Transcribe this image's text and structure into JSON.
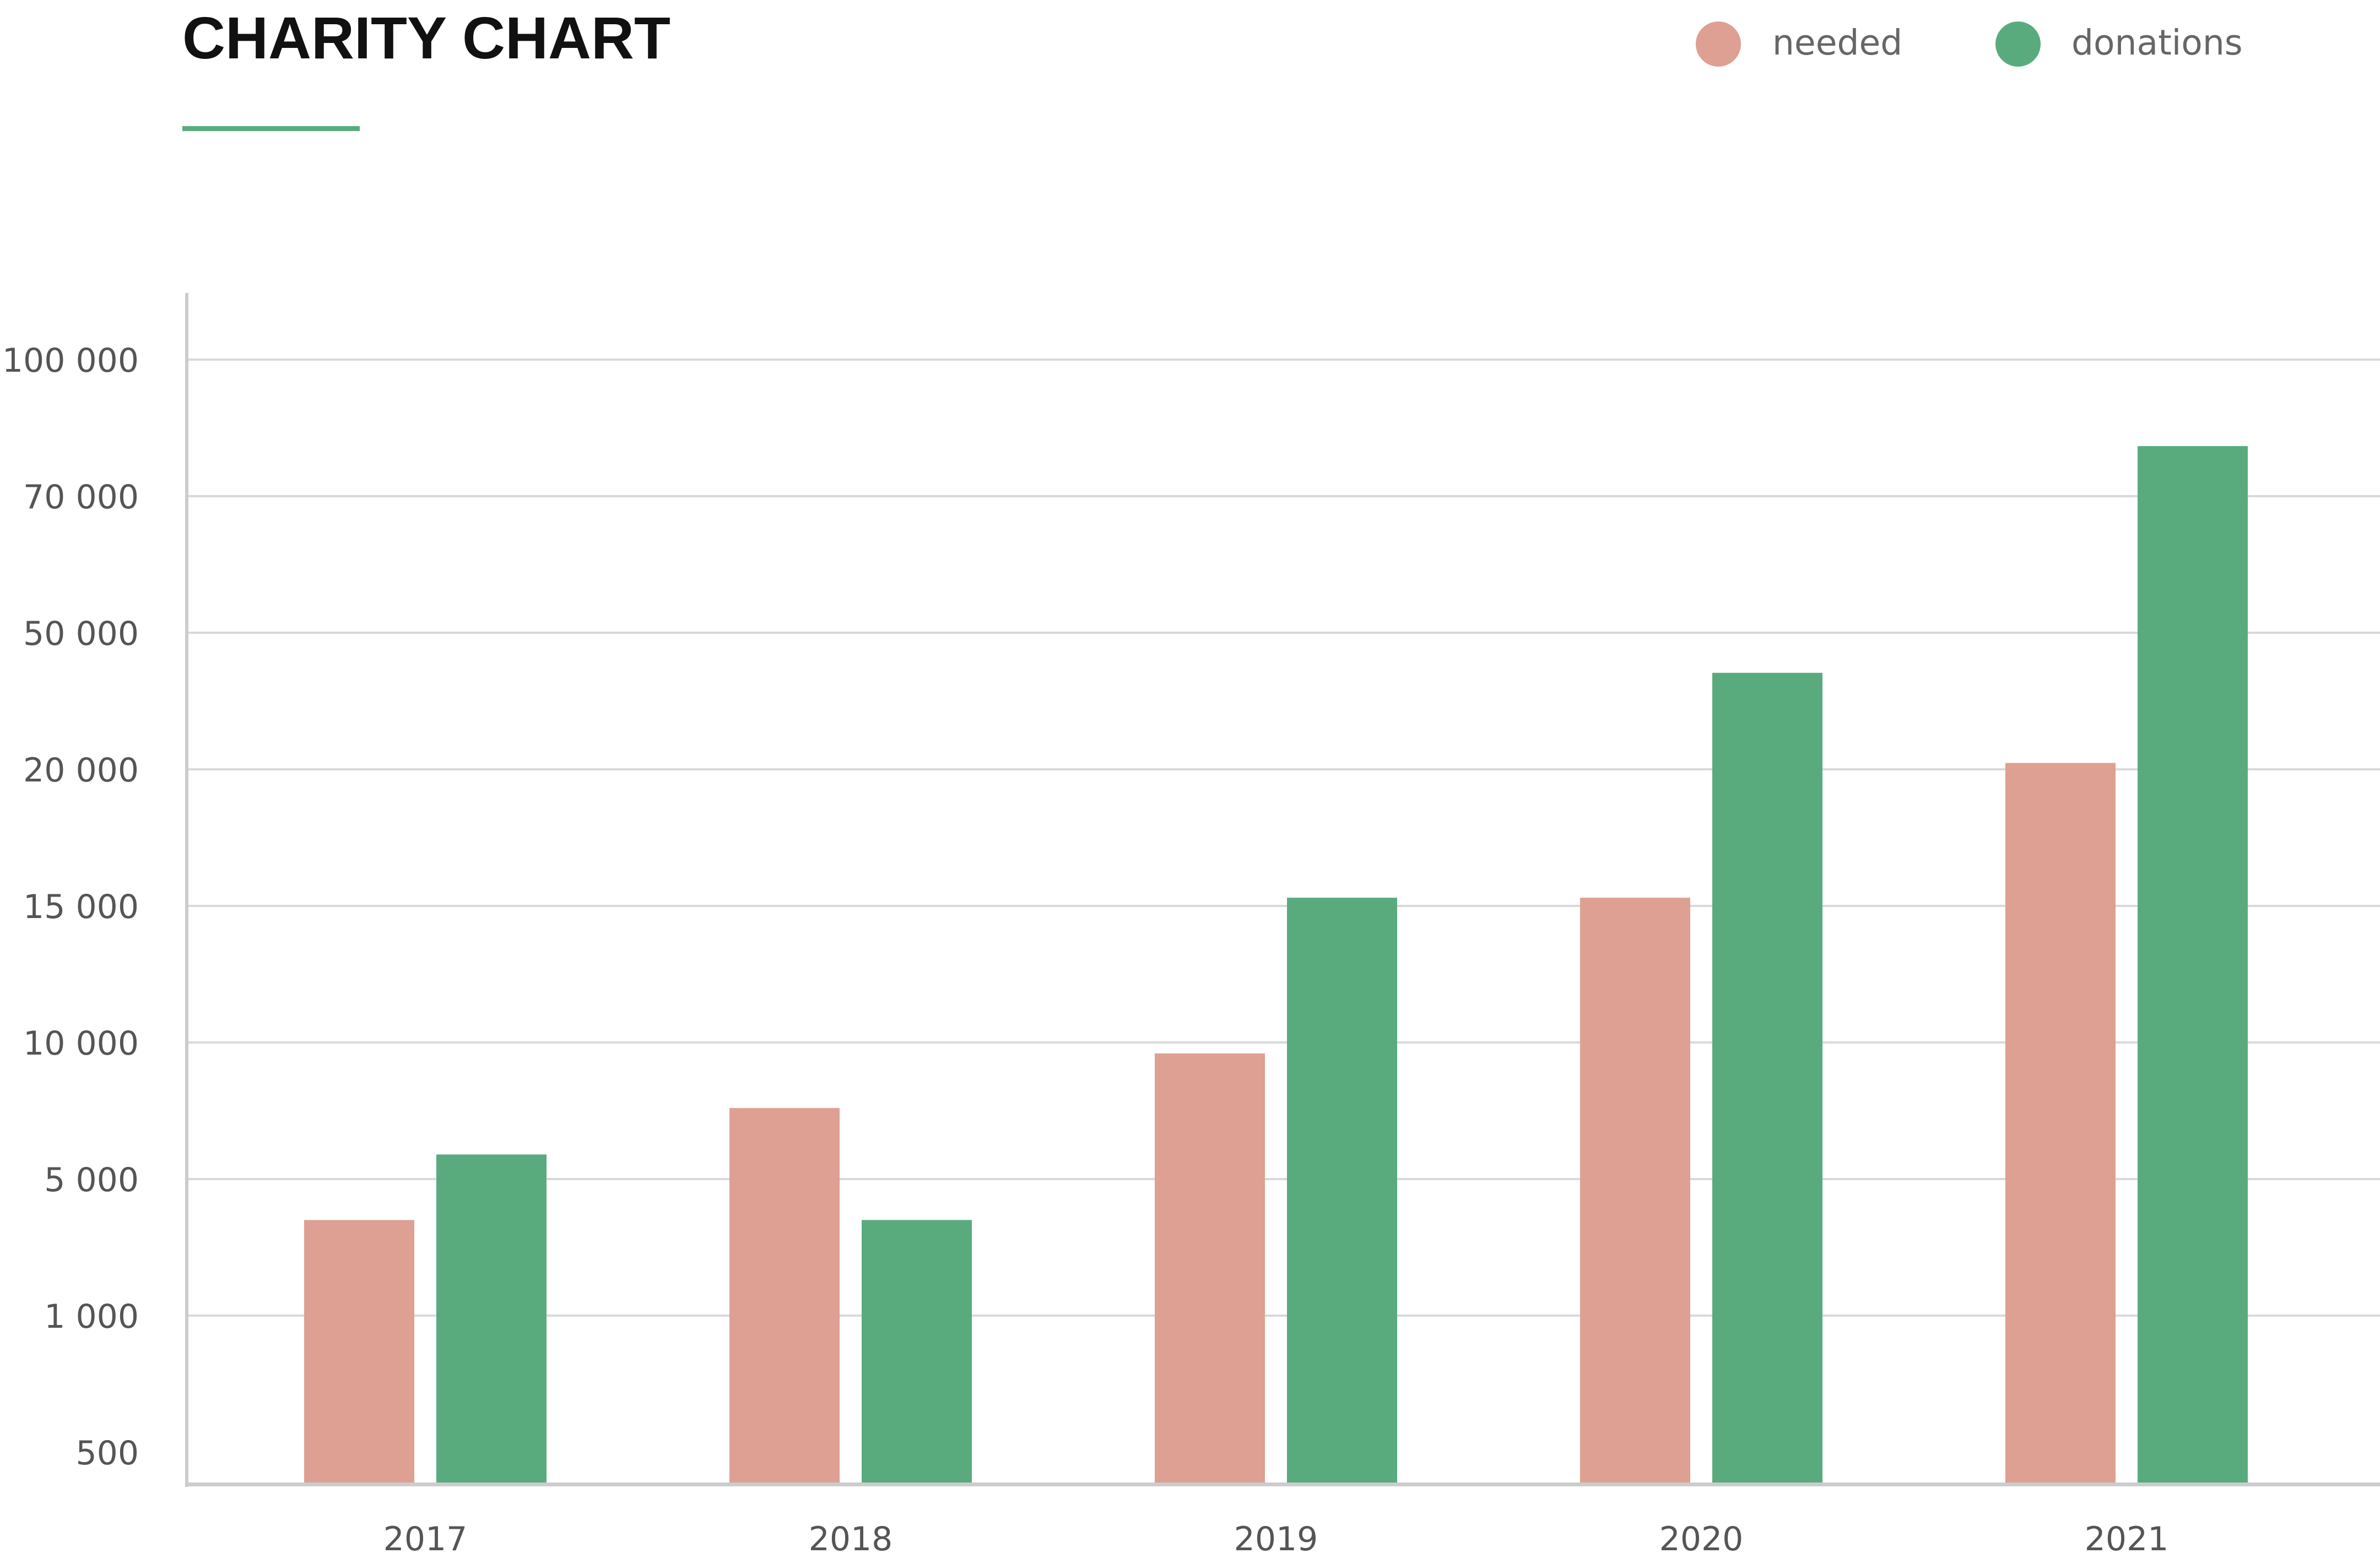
{
  "chart_data": {
    "type": "bar",
    "title": "CHARITY CHART",
    "categories": [
      "2017",
      "2018",
      "2019",
      "2020",
      "2021"
    ],
    "y_ticks": [
      "500",
      "1 000",
      "5 000",
      "10 000",
      "15 000",
      "20 000",
      "50 000",
      "70 000",
      "100 000"
    ],
    "y_tick_values": [
      500,
      1000,
      5000,
      10000,
      15000,
      20000,
      50000,
      70000,
      100000
    ],
    "series": [
      {
        "name": "needed",
        "color": "#dda093",
        "values": [
          3800,
          7600,
          9600,
          15300,
          21400
        ]
      },
      {
        "name": "donations",
        "color": "#59ab7e",
        "values": [
          5900,
          3800,
          15300,
          41200,
          81000
        ]
      }
    ],
    "ylim": [
      500,
      100000
    ],
    "grid": true,
    "legend_position": "top-right",
    "accent_color": "#59ab7e",
    "xlabel": "",
    "ylabel": ""
  }
}
